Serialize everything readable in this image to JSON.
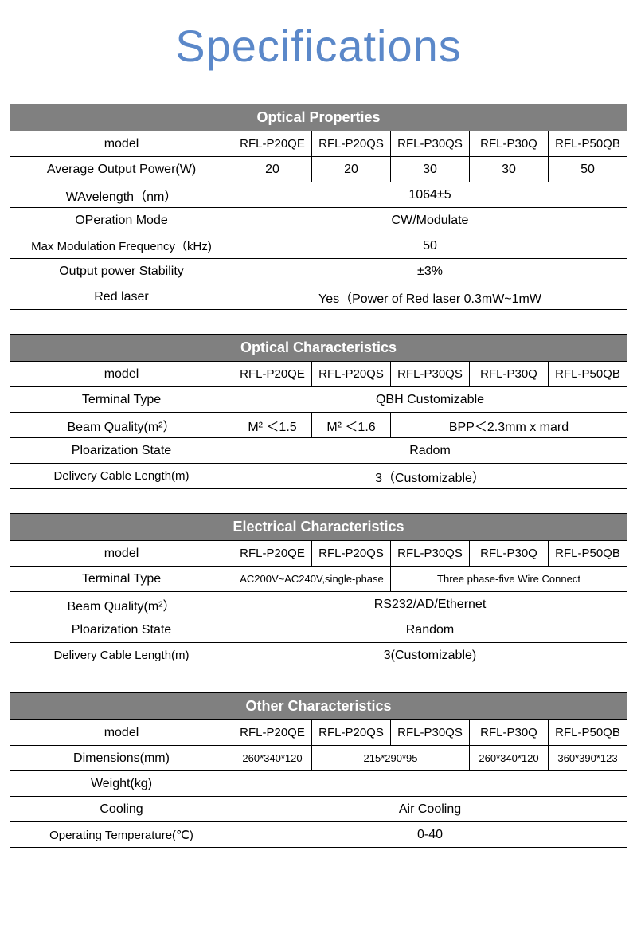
{
  "page": {
    "title": "Specifications",
    "title_color": "#5b88c9",
    "title_fontsize": 56,
    "header_bg": "#808080",
    "header_fg": "#ffffff",
    "border_color": "#000000",
    "bg_color": "#ffffff"
  },
  "models": [
    "RFL-P20QE",
    "RFL-P20QS",
    "RFL-P30QS",
    "RFL-P30Q",
    "RFL-P50QB"
  ],
  "tables": {
    "optical_properties": {
      "title": "Optical Properties",
      "rows": {
        "model_label": "model",
        "avg_power": {
          "label": "Average Output Power(W)",
          "values": [
            "20",
            "20",
            "30",
            "30",
            "50"
          ]
        },
        "wavelength": {
          "label": "WAvelength（nm）",
          "value": "1064±5"
        },
        "op_mode": {
          "label": "OPeration Mode",
          "value": "CW/Modulate"
        },
        "max_mod": {
          "label": "Max Modulation Frequency（kHz)",
          "value": "50"
        },
        "stability": {
          "label": "Output power Stability",
          "value": "±3%"
        },
        "red_laser": {
          "label": "Red laser",
          "value": "Yes（Power of Red laser 0.3mW~1mW"
        }
      }
    },
    "optical_characteristics": {
      "title": "Optical Characteristics",
      "rows": {
        "model_label": "model",
        "terminal": {
          "label": "Terminal Type",
          "value": "QBH Customizable"
        },
        "beam": {
          "label": "Beam Quality(m²）",
          "c1": "M² ＜1.5",
          "c2": "M² ＜1.6",
          "c3": "BPP＜2.3mm x mard"
        },
        "polar": {
          "label": "Ploarization State",
          "value": "Radom"
        },
        "cable": {
          "label": "Delivery Cable Length(m)",
          "value": "3（Customizable）"
        }
      }
    },
    "electrical_characteristics": {
      "title": "Electrical Characteristics",
      "rows": {
        "model_label": "model",
        "terminal": {
          "label": "Terminal Type",
          "c1": "AC200V~AC240V,single-phase",
          "c2": "Three phase-five Wire Connect"
        },
        "beam": {
          "label": "Beam Quality(m²）",
          "value": "RS232/AD/Ethernet"
        },
        "polar": {
          "label": "Ploarization State",
          "value": "Random"
        },
        "cable": {
          "label": "Delivery Cable Length(m)",
          "value": "3(Customizable)"
        }
      }
    },
    "other_characteristics": {
      "title": "Other Characteristics",
      "rows": {
        "model_label": "model",
        "dimensions": {
          "label": "Dimensions(mm)",
          "c1": "260*340*120",
          "c2": "215*290*95",
          "c3": "",
          "c4": "260*340*120",
          "c5": "360*390*123"
        },
        "weight": {
          "label": "Weight(kg)",
          "value": ""
        },
        "cooling": {
          "label": "Cooling",
          "value": "Air Cooling"
        },
        "op_temp": {
          "label": "Operating Temperature(℃)",
          "value": "0-40"
        }
      }
    }
  }
}
